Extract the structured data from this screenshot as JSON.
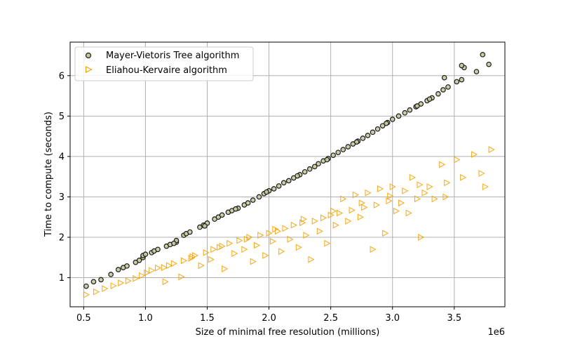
{
  "chart_data": {
    "type": "scatter",
    "title": "",
    "xlabel": "Size of minimal free resolution (millions)",
    "ylabel": "Time to compute (seconds)",
    "x_offset_label": "1e6",
    "x_ticks": [
      0.5,
      1.0,
      1.5,
      2.0,
      2.5,
      3.0,
      3.5
    ],
    "x_tick_labels": [
      "0.5",
      "1.0",
      "1.5",
      "2.0",
      "2.5",
      "3.0",
      "3.5"
    ],
    "y_ticks": [
      1,
      2,
      3,
      4,
      5,
      6
    ],
    "y_tick_labels": [
      "1",
      "2",
      "3",
      "4",
      "5",
      "6"
    ],
    "xlim": [
      0.39,
      3.91
    ],
    "ylim": [
      0.28,
      6.83
    ],
    "grid": true,
    "legend_position": "upper left",
    "series": [
      {
        "name": "Mayer-Vietoris Tree algorithm",
        "marker": "circle",
        "color": "#1a1a1a",
        "fill": "#c8c8a0",
        "points": [
          [
            0.52,
            0.79
          ],
          [
            0.58,
            0.9
          ],
          [
            0.64,
            0.95
          ],
          [
            0.72,
            1.08
          ],
          [
            0.78,
            1.2
          ],
          [
            0.82,
            1.25
          ],
          [
            0.85,
            1.29
          ],
          [
            0.92,
            1.38
          ],
          [
            0.95,
            1.43
          ],
          [
            0.98,
            1.5
          ],
          [
            0.98,
            1.55
          ],
          [
            1.05,
            1.62
          ],
          [
            1.07,
            1.66
          ],
          [
            1.1,
            1.7
          ],
          [
            1.17,
            1.78
          ],
          [
            1.2,
            1.82
          ],
          [
            1.25,
            1.88
          ],
          [
            1.25,
            1.92
          ],
          [
            1.31,
            2.05
          ],
          [
            1.33,
            2.09
          ],
          [
            1.36,
            2.13
          ],
          [
            1.44,
            2.25
          ],
          [
            1.47,
            2.3
          ],
          [
            1.5,
            2.35
          ],
          [
            1.56,
            2.45
          ],
          [
            1.59,
            2.5
          ],
          [
            1.62,
            2.55
          ],
          [
            1.67,
            2.62
          ],
          [
            1.7,
            2.66
          ],
          [
            1.75,
            2.72
          ],
          [
            1.8,
            2.8
          ],
          [
            1.83,
            2.85
          ],
          [
            1.87,
            2.92
          ],
          [
            1.92,
            3.0
          ],
          [
            1.96,
            3.08
          ],
          [
            2.0,
            3.15
          ],
          [
            2.04,
            3.2
          ],
          [
            2.08,
            3.27
          ],
          [
            2.12,
            3.35
          ],
          [
            2.16,
            3.4
          ],
          [
            2.2,
            3.47
          ],
          [
            2.25,
            3.55
          ],
          [
            2.29,
            3.62
          ],
          [
            2.33,
            3.69
          ],
          [
            2.37,
            3.75
          ],
          [
            2.4,
            3.82
          ],
          [
            2.44,
            3.89
          ],
          [
            2.48,
            3.95
          ],
          [
            2.52,
            4.03
          ],
          [
            2.56,
            4.1
          ],
          [
            2.6,
            4.17
          ],
          [
            2.64,
            4.24
          ],
          [
            2.68,
            4.31
          ],
          [
            2.72,
            4.38
          ],
          [
            2.76,
            4.45
          ],
          [
            2.8,
            4.52
          ],
          [
            2.84,
            4.6
          ],
          [
            2.88,
            4.68
          ],
          [
            2.92,
            4.76
          ],
          [
            2.96,
            4.84
          ],
          [
            3.0,
            4.92
          ],
          [
            3.05,
            5.0
          ],
          [
            3.1,
            5.08
          ],
          [
            3.14,
            5.15
          ],
          [
            3.19,
            5.23
          ],
          [
            3.23,
            5.3
          ],
          [
            3.28,
            5.38
          ],
          [
            3.32,
            5.45
          ],
          [
            3.37,
            5.55
          ],
          [
            3.41,
            5.65
          ],
          [
            3.45,
            5.72
          ],
          [
            3.52,
            5.85
          ],
          [
            3.56,
            5.9
          ],
          [
            3.58,
            6.2
          ],
          [
            3.68,
            6.1
          ],
          [
            3.73,
            6.52
          ],
          [
            3.78,
            6.28
          ],
          [
            1.0,
            1.58
          ],
          [
            1.23,
            1.85
          ],
          [
            1.48,
            2.28
          ],
          [
            1.73,
            2.7
          ],
          [
            1.98,
            3.12
          ],
          [
            2.23,
            3.52
          ],
          [
            2.47,
            3.92
          ],
          [
            2.71,
            4.36
          ],
          [
            2.95,
            4.82
          ],
          [
            3.2,
            5.25
          ],
          [
            3.42,
            5.95
          ],
          [
            3.3,
            5.42
          ],
          [
            3.56,
            6.25
          ]
        ]
      },
      {
        "name": "Eliahou-Kervaire algorithm",
        "marker": "triangle-right",
        "color": "#f5a000",
        "fill": "none",
        "points": [
          [
            0.52,
            0.58
          ],
          [
            0.6,
            0.65
          ],
          [
            0.67,
            0.73
          ],
          [
            0.74,
            0.8
          ],
          [
            0.8,
            0.87
          ],
          [
            0.86,
            0.92
          ],
          [
            0.92,
            0.98
          ],
          [
            0.97,
            1.05
          ],
          [
            1.01,
            1.12
          ],
          [
            1.05,
            1.18
          ],
          [
            1.1,
            1.24
          ],
          [
            1.16,
            0.9
          ],
          [
            1.19,
            1.3
          ],
          [
            1.23,
            1.35
          ],
          [
            1.29,
            1.02
          ],
          [
            1.31,
            1.42
          ],
          [
            1.37,
            1.48
          ],
          [
            1.4,
            1.55
          ],
          [
            1.45,
            1.3
          ],
          [
            1.49,
            1.62
          ],
          [
            1.53,
            1.45
          ],
          [
            1.55,
            1.7
          ],
          [
            1.62,
            1.78
          ],
          [
            1.64,
            1.22
          ],
          [
            1.68,
            1.85
          ],
          [
            1.72,
            1.6
          ],
          [
            1.76,
            1.92
          ],
          [
            1.8,
            1.7
          ],
          [
            1.84,
            2.0
          ],
          [
            1.87,
            1.4
          ],
          [
            1.9,
            1.8
          ],
          [
            1.93,
            2.05
          ],
          [
            1.97,
            1.55
          ],
          [
            2.0,
            2.1
          ],
          [
            2.03,
            1.9
          ],
          [
            2.07,
            2.15
          ],
          [
            2.1,
            1.65
          ],
          [
            2.13,
            2.22
          ],
          [
            2.17,
            1.95
          ],
          [
            2.2,
            2.3
          ],
          [
            2.24,
            1.75
          ],
          [
            2.27,
            2.36
          ],
          [
            2.3,
            2.05
          ],
          [
            2.34,
            1.45
          ],
          [
            2.37,
            2.4
          ],
          [
            2.41,
            2.15
          ],
          [
            2.44,
            2.48
          ],
          [
            2.47,
            1.85
          ],
          [
            2.5,
            2.55
          ],
          [
            2.54,
            2.3
          ],
          [
            2.57,
            2.6
          ],
          [
            2.6,
            2.95
          ],
          [
            2.64,
            2.4
          ],
          [
            2.67,
            2.67
          ],
          [
            2.7,
            3.05
          ],
          [
            2.74,
            2.5
          ],
          [
            2.77,
            2.74
          ],
          [
            2.8,
            3.1
          ],
          [
            2.84,
            1.7
          ],
          [
            2.87,
            2.8
          ],
          [
            2.9,
            3.2
          ],
          [
            2.94,
            2.1
          ],
          [
            2.97,
            2.9
          ],
          [
            3.0,
            3.25
          ],
          [
            3.03,
            2.65
          ],
          [
            3.07,
            2.85
          ],
          [
            3.1,
            3.15
          ],
          [
            3.13,
            2.6
          ],
          [
            3.16,
            3.48
          ],
          [
            3.2,
            2.95
          ],
          [
            3.23,
            2.0
          ],
          [
            3.26,
            3.1
          ],
          [
            3.3,
            3.25
          ],
          [
            3.34,
            2.95
          ],
          [
            3.4,
            3.8
          ],
          [
            3.43,
            3.0
          ],
          [
            3.52,
            3.92
          ],
          [
            3.57,
            3.48
          ],
          [
            3.66,
            4.05
          ],
          [
            3.72,
            3.58
          ],
          [
            3.8,
            4.17
          ],
          [
            3.75,
            3.25
          ],
          [
            1.15,
            1.25
          ],
          [
            1.38,
            1.52
          ],
          [
            1.6,
            1.75
          ],
          [
            1.82,
            1.95
          ],
          [
            2.05,
            2.2
          ],
          [
            2.28,
            2.45
          ],
          [
            2.52,
            2.65
          ],
          [
            2.75,
            2.85
          ],
          [
            2.98,
            3.02
          ],
          [
            3.22,
            3.3
          ],
          [
            3.44,
            3.35
          ]
        ]
      }
    ]
  }
}
